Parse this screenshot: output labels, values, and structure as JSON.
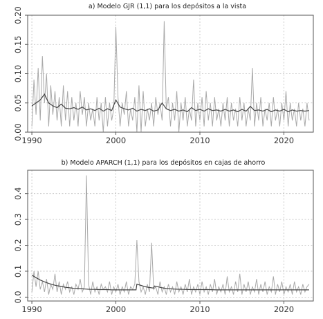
{
  "chart_data": [
    {
      "type": "line",
      "title": "a) Modelo GJR (1,1) para los depósitos a la vista",
      "xlabel": "",
      "ylabel": "",
      "xlim": [
        1989.5,
        2023.5
      ],
      "ylim": [
        0,
        0.2
      ],
      "x_ticks": [
        1990,
        2000,
        2010,
        2020
      ],
      "x_tick_labels": [
        "1990",
        "2000",
        "2010",
        "2020"
      ],
      "y_ticks": [
        0,
        0.05,
        0.1,
        0.15,
        0.2
      ],
      "y_tick_labels": [
        "0.00",
        "0.05",
        "0.10",
        "0.15",
        "0.20"
      ],
      "grid": true,
      "series": [
        {
          "role": "observed",
          "color": "#a9a9a9",
          "x": [
            1990.0,
            1990.25,
            1990.5,
            1990.75,
            1991.0,
            1991.25,
            1991.5,
            1991.75,
            1992.0,
            1992.25,
            1992.5,
            1992.75,
            1993.0,
            1993.25,
            1993.5,
            1993.75,
            1994.0,
            1994.25,
            1994.5,
            1994.75,
            1995.0,
            1995.25,
            1995.5,
            1995.75,
            1996.0,
            1996.25,
            1996.5,
            1996.75,
            1997.0,
            1997.25,
            1997.5,
            1997.75,
            1998.0,
            1998.25,
            1998.5,
            1998.75,
            1999.0,
            1999.25,
            1999.5,
            1999.75,
            2000.0,
            2000.25,
            2000.5,
            2000.75,
            2001.0,
            2001.25,
            2001.5,
            2001.75,
            2002.0,
            2002.25,
            2002.5,
            2002.75,
            2003.0,
            2003.25,
            2003.5,
            2003.75,
            2004.0,
            2004.25,
            2004.5,
            2004.75,
            2005.0,
            2005.25,
            2005.5,
            2005.75,
            2006.0,
            2006.25,
            2006.5,
            2006.75,
            2007.0,
            2007.25,
            2007.5,
            2007.75,
            2008.0,
            2008.25,
            2008.5,
            2008.75,
            2009.0,
            2009.25,
            2009.5,
            2009.75,
            2010.0,
            2010.25,
            2010.5,
            2010.75,
            2011.0,
            2011.25,
            2011.5,
            2011.75,
            2012.0,
            2012.25,
            2012.5,
            2012.75,
            2013.0,
            2013.25,
            2013.5,
            2013.75,
            2014.0,
            2014.25,
            2014.5,
            2014.75,
            2015.0,
            2015.25,
            2015.5,
            2015.75,
            2016.0,
            2016.25,
            2016.5,
            2016.75,
            2017.0,
            2017.25,
            2017.5,
            2017.75,
            2018.0,
            2018.25,
            2018.5,
            2018.75,
            2019.0,
            2019.25,
            2019.5,
            2019.75,
            2020.0,
            2020.25,
            2020.5,
            2020.75,
            2021.0,
            2021.25,
            2021.5,
            2021.75,
            2022.0,
            2022.25,
            2022.5,
            2022.75,
            2023.0
          ],
          "values": [
            0.01,
            0.09,
            0.03,
            0.11,
            0.02,
            0.13,
            0.05,
            0.1,
            0.01,
            0.08,
            0.03,
            0.07,
            0.02,
            0.06,
            0.01,
            0.08,
            0.02,
            0.07,
            0.01,
            0.06,
            0.02,
            0.05,
            0.01,
            0.07,
            0.03,
            0.06,
            0.01,
            0.05,
            0.02,
            0.04,
            0.01,
            0.06,
            0.02,
            0.05,
            0.0,
            0.06,
            0.01,
            0.05,
            0.02,
            0.04,
            0.18,
            0.06,
            0.01,
            0.05,
            0.03,
            0.07,
            0.01,
            0.04,
            0.02,
            0.06,
            0.0,
            0.08,
            0.0,
            0.07,
            0.01,
            0.04,
            0.02,
            0.05,
            0.01,
            0.06,
            0.03,
            0.05,
            0.02,
            0.19,
            0.04,
            0.06,
            0.01,
            0.05,
            0.02,
            0.07,
            0.0,
            0.05,
            0.02,
            0.06,
            0.01,
            0.04,
            0.02,
            0.09,
            0.01,
            0.05,
            0.02,
            0.06,
            0.01,
            0.07,
            0.02,
            0.05,
            0.01,
            0.06,
            0.02,
            0.04,
            0.01,
            0.05,
            0.02,
            0.06,
            0.01,
            0.05,
            0.02,
            0.04,
            0.01,
            0.06,
            0.02,
            0.05,
            0.01,
            0.04,
            0.02,
            0.11,
            0.01,
            0.05,
            0.02,
            0.06,
            0.01,
            0.04,
            0.02,
            0.05,
            0.01,
            0.06,
            0.02,
            0.04,
            0.01,
            0.05,
            0.02,
            0.07,
            0.01,
            0.05,
            0.02,
            0.04,
            0.01,
            0.05,
            0.02,
            0.04,
            0.01,
            0.05,
            0.02
          ]
        },
        {
          "role": "fitted",
          "color": "#444444",
          "x": [
            1990.0,
            1990.5,
            1991.0,
            1991.5,
            1992.0,
            1992.5,
            1993.0,
            1993.5,
            1994.0,
            1994.5,
            1995.0,
            1995.5,
            1996.0,
            1996.5,
            1997.0,
            1997.5,
            1998.0,
            1998.5,
            1999.0,
            1999.5,
            2000.0,
            2000.5,
            2001.0,
            2001.5,
            2002.0,
            2002.5,
            2003.0,
            2003.5,
            2004.0,
            2004.5,
            2005.0,
            2005.5,
            2006.0,
            2006.5,
            2007.0,
            2007.5,
            2008.0,
            2008.5,
            2009.0,
            2009.5,
            2010.0,
            2010.5,
            2011.0,
            2011.5,
            2012.0,
            2012.5,
            2013.0,
            2013.5,
            2014.0,
            2014.5,
            2015.0,
            2015.5,
            2016.0,
            2016.5,
            2017.0,
            2017.5,
            2018.0,
            2018.5,
            2019.0,
            2019.5,
            2020.0,
            2020.5,
            2021.0,
            2021.5,
            2022.0,
            2022.5,
            2023.0
          ],
          "values": [
            0.045,
            0.05,
            0.055,
            0.065,
            0.05,
            0.045,
            0.042,
            0.048,
            0.041,
            0.04,
            0.042,
            0.039,
            0.043,
            0.038,
            0.04,
            0.037,
            0.041,
            0.036,
            0.04,
            0.037,
            0.055,
            0.043,
            0.04,
            0.038,
            0.041,
            0.036,
            0.039,
            0.037,
            0.04,
            0.036,
            0.038,
            0.05,
            0.04,
            0.037,
            0.039,
            0.036,
            0.038,
            0.035,
            0.042,
            0.037,
            0.039,
            0.036,
            0.04,
            0.037,
            0.038,
            0.036,
            0.039,
            0.036,
            0.038,
            0.035,
            0.039,
            0.036,
            0.044,
            0.037,
            0.038,
            0.036,
            0.039,
            0.035,
            0.038,
            0.036,
            0.039,
            0.035,
            0.038,
            0.036,
            0.037,
            0.036,
            0.037
          ]
        }
      ]
    },
    {
      "type": "line",
      "title": "b) Modelo APARCH (1,1) para los depósitos en cajas de ahorro",
      "xlabel": "",
      "ylabel": "",
      "xlim": [
        1989.5,
        2023.5
      ],
      "ylim": [
        -0.015,
        0.49
      ],
      "x_ticks": [
        1990,
        2000,
        2010,
        2020
      ],
      "x_tick_labels": [
        "1990",
        "2000",
        "2010",
        "2020"
      ],
      "y_ticks": [
        0.0,
        0.1,
        0.2,
        0.3,
        0.4
      ],
      "y_tick_labels": [
        "0.0",
        "0.1",
        "0.2",
        "0.3",
        "0.4"
      ],
      "grid": true,
      "series": [
        {
          "role": "observed",
          "color": "#a9a9a9",
          "x": [
            1990.0,
            1990.25,
            1990.5,
            1990.75,
            1991.0,
            1991.25,
            1991.5,
            1991.75,
            1992.0,
            1992.25,
            1992.5,
            1992.75,
            1993.0,
            1993.25,
            1993.5,
            1993.75,
            1994.0,
            1994.25,
            1994.5,
            1994.75,
            1995.0,
            1995.25,
            1995.5,
            1995.75,
            1996.0,
            1996.25,
            1996.5,
            1996.75,
            1997.0,
            1997.25,
            1997.5,
            1997.75,
            1998.0,
            1998.25,
            1998.5,
            1998.75,
            1999.0,
            1999.25,
            1999.5,
            1999.75,
            2000.0,
            2000.25,
            2000.5,
            2000.75,
            2001.0,
            2001.25,
            2001.5,
            2001.75,
            2002.0,
            2002.25,
            2002.5,
            2002.75,
            2003.0,
            2003.25,
            2003.5,
            2003.75,
            2004.0,
            2004.25,
            2004.5,
            2004.75,
            2005.0,
            2005.25,
            2005.5,
            2005.75,
            2006.0,
            2006.25,
            2006.5,
            2006.75,
            2007.0,
            2007.25,
            2007.5,
            2007.75,
            2008.0,
            2008.25,
            2008.5,
            2008.75,
            2009.0,
            2009.25,
            2009.5,
            2009.75,
            2010.0,
            2010.25,
            2010.5,
            2010.75,
            2011.0,
            2011.25,
            2011.5,
            2011.75,
            2012.0,
            2012.25,
            2012.5,
            2012.75,
            2013.0,
            2013.25,
            2013.5,
            2013.75,
            2014.0,
            2014.25,
            2014.5,
            2014.75,
            2015.0,
            2015.25,
            2015.5,
            2015.75,
            2016.0,
            2016.25,
            2016.5,
            2016.75,
            2017.0,
            2017.25,
            2017.5,
            2017.75,
            2018.0,
            2018.25,
            2018.5,
            2018.75,
            2019.0,
            2019.25,
            2019.5,
            2019.75,
            2020.0,
            2020.25,
            2020.5,
            2020.75,
            2021.0,
            2021.25,
            2021.5,
            2021.75,
            2022.0,
            2022.25,
            2022.5,
            2022.75,
            2023.0
          ],
          "values": [
            0.02,
            0.1,
            0.04,
            0.1,
            0.03,
            0.06,
            0.02,
            0.07,
            0.01,
            0.05,
            0.03,
            0.09,
            0.02,
            0.06,
            0.01,
            0.05,
            0.03,
            0.06,
            0.02,
            0.04,
            0.01,
            0.05,
            0.03,
            0.07,
            0.02,
            0.04,
            0.47,
            0.05,
            0.01,
            0.06,
            0.02,
            0.04,
            0.01,
            0.05,
            0.03,
            0.04,
            0.02,
            0.06,
            0.01,
            0.04,
            0.02,
            0.05,
            0.01,
            0.04,
            0.02,
            0.06,
            0.01,
            0.04,
            0.03,
            0.05,
            0.22,
            0.06,
            0.02,
            0.04,
            0.01,
            0.05,
            0.02,
            0.21,
            0.03,
            0.04,
            0.01,
            0.06,
            0.02,
            0.04,
            0.01,
            0.05,
            0.02,
            0.04,
            0.01,
            0.06,
            0.02,
            0.04,
            0.01,
            0.05,
            0.02,
            0.07,
            0.01,
            0.04,
            0.02,
            0.05,
            0.01,
            0.06,
            0.02,
            0.04,
            0.01,
            0.05,
            0.02,
            0.07,
            0.01,
            0.04,
            0.02,
            0.05,
            0.01,
            0.08,
            0.02,
            0.04,
            0.01,
            0.06,
            0.02,
            0.09,
            0.01,
            0.05,
            0.02,
            0.06,
            0.01,
            0.04,
            0.02,
            0.07,
            0.01,
            0.05,
            0.02,
            0.06,
            0.01,
            0.04,
            0.02,
            0.08,
            0.01,
            0.05,
            0.02,
            0.06,
            0.01,
            0.04,
            0.02,
            0.05,
            0.01,
            0.06,
            0.02,
            0.04,
            0.01,
            0.05,
            0.02,
            0.04,
            0.05
          ]
        },
        {
          "role": "fitted",
          "color": "#444444",
          "x": [
            1990.0,
            1990.5,
            1991.0,
            1991.5,
            1992.0,
            1992.5,
            1993.0,
            1993.5,
            1994.0,
            1994.5,
            1995.0,
            1995.5,
            1996.0,
            1996.5,
            1997.0,
            1997.5,
            1998.0,
            1998.5,
            1999.0,
            1999.5,
            2000.0,
            2000.5,
            2001.0,
            2001.5,
            2002.0,
            2002.4,
            2002.5,
            2003.0,
            2003.5,
            2004.0,
            2004.5,
            2004.6,
            2005.0,
            2005.5,
            2006.0,
            2007.0,
            2008.0,
            2009.0,
            2010.0,
            2011.0,
            2012.0,
            2013.0,
            2014.0,
            2015.0,
            2016.0,
            2017.0,
            2018.0,
            2019.0,
            2020.0,
            2021.0,
            2022.0,
            2023.0
          ],
          "values": [
            0.085,
            0.075,
            0.066,
            0.059,
            0.053,
            0.048,
            0.044,
            0.041,
            0.038,
            0.036,
            0.034,
            0.033,
            0.032,
            0.031,
            0.03,
            0.03,
            0.029,
            0.029,
            0.029,
            0.028,
            0.028,
            0.028,
            0.028,
            0.028,
            0.028,
            0.028,
            0.05,
            0.045,
            0.04,
            0.037,
            0.035,
            0.043,
            0.04,
            0.036,
            0.033,
            0.031,
            0.03,
            0.029,
            0.029,
            0.029,
            0.028,
            0.028,
            0.028,
            0.028,
            0.028,
            0.028,
            0.028,
            0.028,
            0.028,
            0.028,
            0.028,
            0.028
          ]
        }
      ]
    }
  ]
}
